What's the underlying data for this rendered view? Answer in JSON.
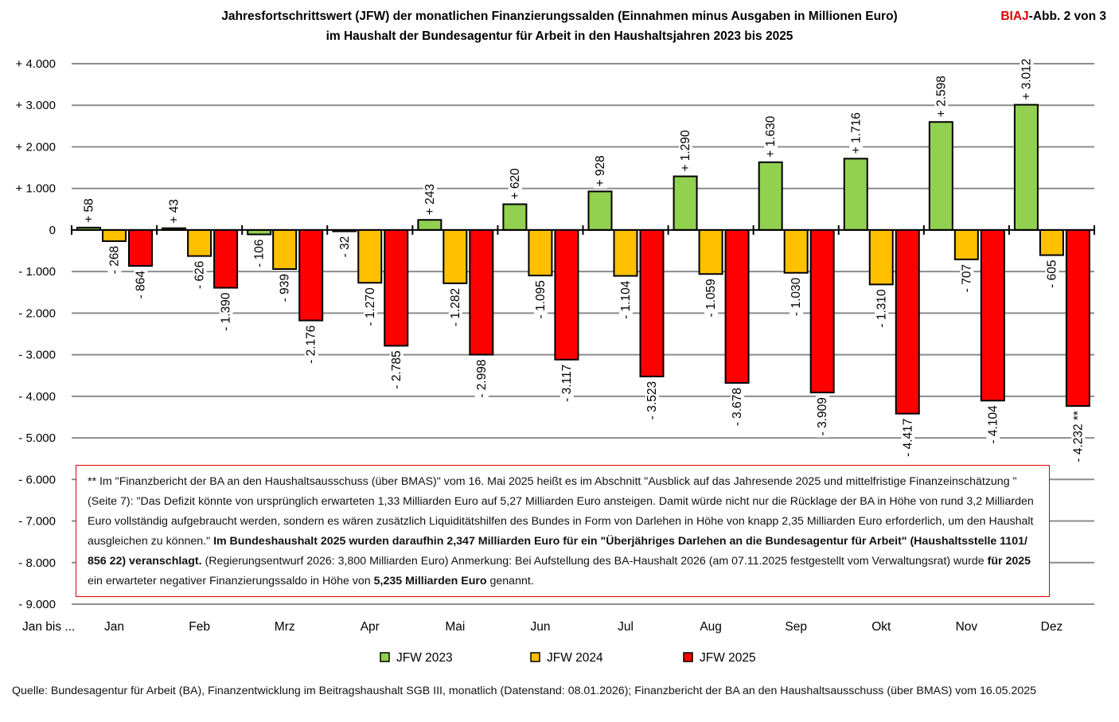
{
  "chart_data": {
    "type": "bar",
    "title": [
      "Jahresfortschrittswert (JFW) der monatlichen Finanzierungssalden (Einnahmen minus Ausgaben in Millionen Euro)",
      "im Haushalt der Bundesagentur für Arbeit in den Haushaltsjahren 2023 bis 2025"
    ],
    "tag": {
      "brand": "BIAJ",
      "rest": "-Abb. 2 von 3"
    },
    "xlabel": "Jan bis ...",
    "categories": [
      "Jan",
      "Feb",
      "Mrz",
      "Apr",
      "Mai",
      "Jun",
      "Jul",
      "Aug",
      "Sep",
      "Okt",
      "Nov",
      "Dez"
    ],
    "ylim": [
      -9000,
      4000
    ],
    "yticks": [
      4000,
      3000,
      2000,
      1000,
      0,
      -1000,
      -2000,
      -3000,
      -4000,
      -5000,
      -6000,
      -7000,
      -8000,
      -9000
    ],
    "ytick_labels": [
      "+ 4.000",
      "+ 3.000",
      "+ 2.000",
      "+ 1.000",
      "0",
      "- 1.000",
      "- 2.000",
      "- 3.000",
      "- 4.000",
      "- 5.000",
      "- 6.000",
      "- 7.000",
      "- 8.000",
      "- 9.000"
    ],
    "grid": true,
    "legend_position": "bottom",
    "series": [
      {
        "name": "JFW 2023",
        "color": "#92d050",
        "values": [
          58,
          43,
          -106,
          -32,
          243,
          620,
          928,
          1290,
          1630,
          1716,
          2598,
          3012
        ],
        "labels": [
          "+ 58",
          "+ 43",
          "- 106",
          "- 32",
          "+ 243",
          "+ 620",
          "+ 928",
          "+ 1.290",
          "+ 1.630",
          "+ 1.716",
          "+ 2.598",
          "+ 3.012"
        ]
      },
      {
        "name": "JFW 2024",
        "color": "#ffc000",
        "values": [
          -268,
          -626,
          -939,
          -1270,
          -1282,
          -1095,
          -1104,
          -1059,
          -1030,
          -1310,
          -707,
          -605
        ],
        "labels": [
          "- 268",
          "- 626",
          "- 939",
          "- 1.270",
          "- 1.282",
          "- 1.095",
          "- 1.104",
          "- 1.059",
          "- 1.030",
          "- 1.310",
          "- 707",
          "- 605"
        ]
      },
      {
        "name": "JFW 2025",
        "color": "#ff0000",
        "values": [
          -864,
          -1390,
          -2176,
          -2785,
          -2998,
          -3117,
          -3523,
          -3678,
          -3909,
          -4417,
          -4104,
          -4232
        ],
        "labels": [
          "- 864",
          "- 1.390",
          "- 2.176",
          "- 2.785",
          "- 2.998",
          "- 3.117",
          "- 3.523",
          "- 3.678",
          "- 3.909",
          "- 4.417",
          "- 4.104",
          "- 4.232 **"
        ]
      }
    ],
    "note": [
      {
        "text": "** Im \"Finanzbericht der BA an den Haushaltsausschuss (über BMAS)\" vom 16. Mai 2025 heißt es im Abschnitt \"Ausblick auf das Jahresende 2025 und mittelfristige Finanzeinschätzung \" (Seite 7): \"Das Defizit könnte von ursprünglich erwarteten 1,33 Milliarden Euro auf 5,27 Milliarden Euro ansteigen. Damit würde nicht nur die Rücklage der BA in Höhe von rund 3,2 Milliarden Euro vollständig aufgebraucht werden, sondern es wären zusätzlich Liquiditätshilfen des Bundes in Form von Darlehen in Höhe von knapp 2,35 Milliarden Euro erforderlich, um den Haushalt ausgleichen zu können.\"  ",
        "bold": false
      },
      {
        "text": "Im  Bundeshaushalt 2025 wurden daraufhin 2,347 Milliarden Euro für ein \"Überjähriges Darlehen an die Bundesagentur für Arbeit\" (Haushaltsstelle 1101/ 856 22) veranschlagt.",
        "bold": true
      },
      {
        "text": " (Regierungsentwurf 2026: 3,800 Milliarden Euro)  Anmerkung: Bei Aufstellung des BA-Haushalt 2026 (am 07.11.2025 festgestellt vom Verwaltungsrat) wurde ",
        "bold": false
      },
      {
        "text": "für 2025",
        "bold": true
      },
      {
        "text": " ein erwarteter negativer Finanzierungssaldo in Höhe von ",
        "bold": false
      },
      {
        "text": "5,235 Milliarden Euro",
        "bold": true
      },
      {
        "text": " genannt.",
        "bold": false
      }
    ],
    "source": "Quelle: Bundesagentur für Arbeit (BA), Finanzentwicklung im Beitragshaushalt SGB III, monatlich (Datenstand: 08.01.2026); Finanzbericht der BA an den Haushaltsausschuss (über BMAS) vom 16.05.2025"
  }
}
